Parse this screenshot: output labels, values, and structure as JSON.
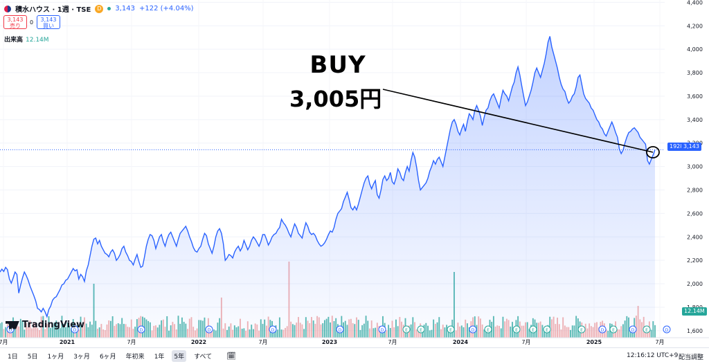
{
  "header": {
    "symbol_title": "積水ハウス · 1週 · TSE",
    "badge": "D",
    "last_price": "3,143",
    "change": "+122 (+4.04%)"
  },
  "quotes": {
    "sell_price": "3,143",
    "sell_label": "売り",
    "spread": "0",
    "buy_price": "3,143",
    "buy_label": "買い"
  },
  "volume_legend": {
    "label": "出来高",
    "value": "12.14M"
  },
  "annotation": {
    "word": "BUY",
    "price": "3,005円"
  },
  "price_tags": {
    "countdown": "1928",
    "last": "3,143",
    "volume": "12.14M"
  },
  "logo": {
    "text": "TradingView"
  },
  "toolbar": {
    "timeframes": [
      "1日",
      "5日",
      "1ヶ月",
      "3ヶ月",
      "6ヶ月",
      "年初来",
      "1年",
      "5年",
      "すべて"
    ],
    "active": "5年",
    "clock": "12:16:12 UTC+9",
    "adjust": "配当調整"
  },
  "colors": {
    "line": "#2962ff",
    "vol_up": "#26a69a",
    "vol_down": "#ef9a9a",
    "accent": "#2962ff"
  },
  "chart_data": {
    "type": "area",
    "y_ticks": [
      1600,
      1800,
      2000,
      2200,
      2400,
      2600,
      2800,
      3000,
      3200,
      3400,
      3600,
      3800,
      4000,
      4200,
      4400
    ],
    "x_tick_labels": [
      "7月",
      "2021",
      "7月",
      "2022",
      "7月",
      "2023",
      "7月",
      "2024",
      "7月",
      "2025",
      "7月"
    ],
    "ylim": [
      1540,
      4420
    ],
    "series": [
      {
        "values": [
          2100,
          2125,
          2105,
          2140,
          2120,
          2040,
          2005,
          2050,
          2100,
          2080,
          1920,
          1990,
          2050,
          2100,
          2070,
          2030,
          1980,
          1940,
          1900,
          1855,
          1790,
          1780,
          1760,
          1790,
          1760,
          1720,
          1780,
          1810,
          1860,
          1880,
          1890,
          1920,
          1950,
          1990,
          2000,
          2030,
          2040,
          2070,
          2100,
          2130,
          2110,
          2120,
          2040,
          2080,
          2060,
          2020,
          2110,
          2160,
          2240,
          2320,
          2380,
          2390,
          2340,
          2370,
          2320,
          2290,
          2260,
          2250,
          2230,
          2270,
          2290,
          2260,
          2200,
          2220,
          2250,
          2300,
          2320,
          2270,
          2240,
          2200,
          2190,
          2160,
          2210,
          2250,
          2190,
          2140,
          2150,
          2230,
          2320,
          2380,
          2420,
          2410,
          2370,
          2300,
          2350,
          2400,
          2420,
          2360,
          2320,
          2380,
          2420,
          2440,
          2400,
          2360,
          2320,
          2380,
          2430,
          2450,
          2470,
          2490,
          2450,
          2400,
          2360,
          2310,
          2280,
          2270,
          2300,
          2320,
          2380,
          2430,
          2410,
          2340,
          2300,
          2260,
          2320,
          2400,
          2450,
          2470,
          2430,
          2340,
          2200,
          2220,
          2250,
          2240,
          2220,
          2270,
          2300,
          2320,
          2280,
          2310,
          2370,
          2330,
          2290,
          2320,
          2370,
          2400,
          2380,
          2350,
          2320,
          2360,
          2420,
          2420,
          2380,
          2330,
          2360,
          2400,
          2420,
          2430,
          2460,
          2480,
          2550,
          2520,
          2500,
          2470,
          2430,
          2400,
          2460,
          2510,
          2480,
          2430,
          2410,
          2390,
          2460,
          2520,
          2490,
          2440,
          2420,
          2430,
          2410,
          2370,
          2340,
          2320,
          2330,
          2350,
          2380,
          2420,
          2450,
          2440,
          2480,
          2550,
          2600,
          2620,
          2640,
          2700,
          2740,
          2780,
          2720,
          2650,
          2630,
          2660,
          2630,
          2680,
          2740,
          2800,
          2860,
          2900,
          2920,
          2850,
          2810,
          2850,
          2880,
          2760,
          2730,
          2800,
          2890,
          2920,
          2880,
          2900,
          2950,
          2870,
          2850,
          2900,
          2980,
          2950,
          2900,
          2880,
          2950,
          3000,
          2960,
          3050,
          3120,
          3080,
          2990,
          2880,
          2800,
          2820,
          2840,
          2860,
          2900,
          2960,
          3000,
          3050,
          3020,
          3060,
          3080,
          3040,
          3000,
          3080,
          3160,
          3240,
          3320,
          3380,
          3400,
          3360,
          3300,
          3270,
          3320,
          3360,
          3300,
          3380,
          3450,
          3430,
          3400,
          3480,
          3520,
          3480,
          3430,
          3350,
          3420,
          3480,
          3500,
          3560,
          3600,
          3620,
          3580,
          3540,
          3500,
          3580,
          3650,
          3620,
          3600,
          3560,
          3620,
          3680,
          3720,
          3800,
          3850,
          3780,
          3690,
          3600,
          3520,
          3550,
          3600,
          3650,
          3720,
          3800,
          3840,
          3800,
          3760,
          3820,
          3880,
          3960,
          4060,
          4110,
          4020,
          3960,
          3900,
          3840,
          3760,
          3700,
          3660,
          3640,
          3580,
          3540,
          3560,
          3600,
          3620,
          3680,
          3760,
          3780,
          3700,
          3620,
          3580,
          3560,
          3540,
          3500,
          3480,
          3440,
          3400,
          3380,
          3340,
          3320,
          3280,
          3260,
          3300,
          3340,
          3380,
          3340,
          3290,
          3250,
          3150,
          3110,
          3140,
          3200,
          3250,
          3290,
          3300,
          3320,
          3330,
          3310,
          3290,
          3250,
          3230,
          3210,
          3190,
          3050,
          3020,
          3060,
          3100,
          3143
        ]
      }
    ],
    "volume_unit": "M",
    "volume_max_label": "12.14M"
  }
}
